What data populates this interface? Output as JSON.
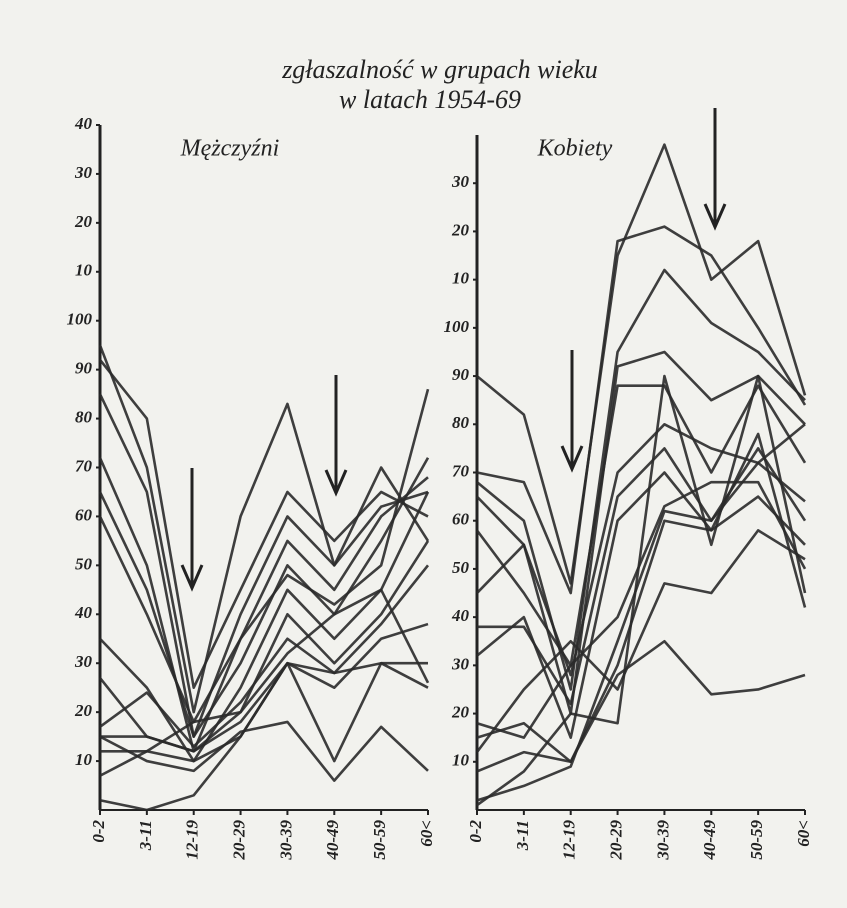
{
  "title": [
    "zgłaszalność w grupach wieku",
    "w latach 1954-69"
  ],
  "chart_data": [
    {
      "type": "line",
      "title": "Mężczyźni",
      "categories": [
        "0-2",
        "3-11",
        "12-19",
        "20-29",
        "30-39",
        "40-49",
        "50-59",
        "60<"
      ],
      "ylim": [
        0,
        140
      ],
      "yticks": [
        10,
        20,
        30,
        40,
        50,
        60,
        70,
        80,
        90,
        100,
        {
          "value": 110,
          "label": "10"
        },
        {
          "value": 120,
          "label": "20"
        },
        {
          "value": 130,
          "label": "30"
        },
        {
          "value": 140,
          "label": "40"
        }
      ],
      "color": "#2a2a2a",
      "series": [
        {
          "values": [
            95,
            70,
            20,
            60,
            83,
            50,
            70,
            55
          ]
        },
        {
          "values": [
            92,
            80,
            25,
            45,
            65,
            55,
            65,
            60
          ]
        },
        {
          "values": [
            85,
            65,
            15,
            40,
            60,
            50,
            62,
            65
          ]
        },
        {
          "values": [
            72,
            50,
            12,
            35,
            55,
            45,
            60,
            68
          ]
        },
        {
          "values": [
            65,
            45,
            15,
            30,
            50,
            40,
            55,
            72
          ]
        },
        {
          "values": [
            60,
            40,
            18,
            35,
            48,
            42,
            50,
            86
          ]
        },
        {
          "values": [
            35,
            25,
            10,
            25,
            45,
            35,
            45,
            65
          ]
        },
        {
          "values": [
            27,
            15,
            12,
            20,
            40,
            30,
            40,
            55
          ]
        },
        {
          "values": [
            17,
            24,
            13,
            22,
            35,
            28,
            38,
            50
          ]
        },
        {
          "values": [
            15,
            15,
            12,
            18,
            30,
            25,
            35,
            38
          ]
        },
        {
          "values": [
            12,
            12,
            10,
            15,
            30,
            28,
            30,
            30
          ]
        },
        {
          "values": [
            7,
            12,
            18,
            20,
            32,
            40,
            45,
            26
          ]
        },
        {
          "values": [
            15,
            10,
            8,
            16,
            18,
            6,
            17,
            8
          ]
        },
        {
          "values": [
            2,
            0,
            3,
            15,
            30,
            10,
            30,
            25
          ]
        }
      ]
    },
    {
      "type": "line",
      "title": "Kobiety",
      "categories": [
        "0-2",
        "3-11",
        "12-19",
        "20-29",
        "30-39",
        "40-49",
        "50-59",
        "60<"
      ],
      "ylim": [
        0,
        140
      ],
      "yticks": [
        10,
        20,
        30,
        40,
        50,
        60,
        70,
        80,
        90,
        100,
        {
          "value": 110,
          "label": "10"
        },
        {
          "value": 120,
          "label": "20"
        },
        {
          "value": 130,
          "label": "30"
        }
      ],
      "color": "#2a2a2a",
      "series": [
        {
          "values": [
            90,
            82,
            47,
            115,
            138,
            110,
            118,
            86
          ]
        },
        {
          "values": [
            70,
            68,
            45,
            118,
            121,
            115,
            100,
            84
          ]
        },
        {
          "values": [
            68,
            60,
            25,
            95,
            112,
            101,
            95,
            85
          ]
        },
        {
          "values": [
            65,
            55,
            20,
            92,
            95,
            85,
            90,
            80
          ]
        },
        {
          "values": [
            58,
            45,
            30,
            88,
            88,
            70,
            88,
            72
          ]
        },
        {
          "values": [
            45,
            55,
            28,
            70,
            80,
            75,
            72,
            64
          ]
        },
        {
          "values": [
            38,
            38,
            22,
            65,
            75,
            60,
            75,
            60
          ]
        },
        {
          "values": [
            32,
            40,
            15,
            60,
            70,
            58,
            65,
            55
          ]
        },
        {
          "values": [
            18,
            15,
            30,
            40,
            63,
            68,
            68,
            50
          ]
        },
        {
          "values": [
            15,
            18,
            10,
            30,
            60,
            58,
            78,
            42
          ]
        },
        {
          "values": [
            12,
            25,
            35,
            25,
            47,
            45,
            58,
            52
          ]
        },
        {
          "values": [
            8,
            12,
            10,
            28,
            35,
            24,
            25,
            28
          ]
        },
        {
          "values": [
            2,
            5,
            9,
            35,
            62,
            60,
            72,
            80
          ]
        },
        {
          "values": [
            1,
            8,
            20,
            18,
            90,
            55,
            90,
            45
          ]
        }
      ]
    }
  ]
}
